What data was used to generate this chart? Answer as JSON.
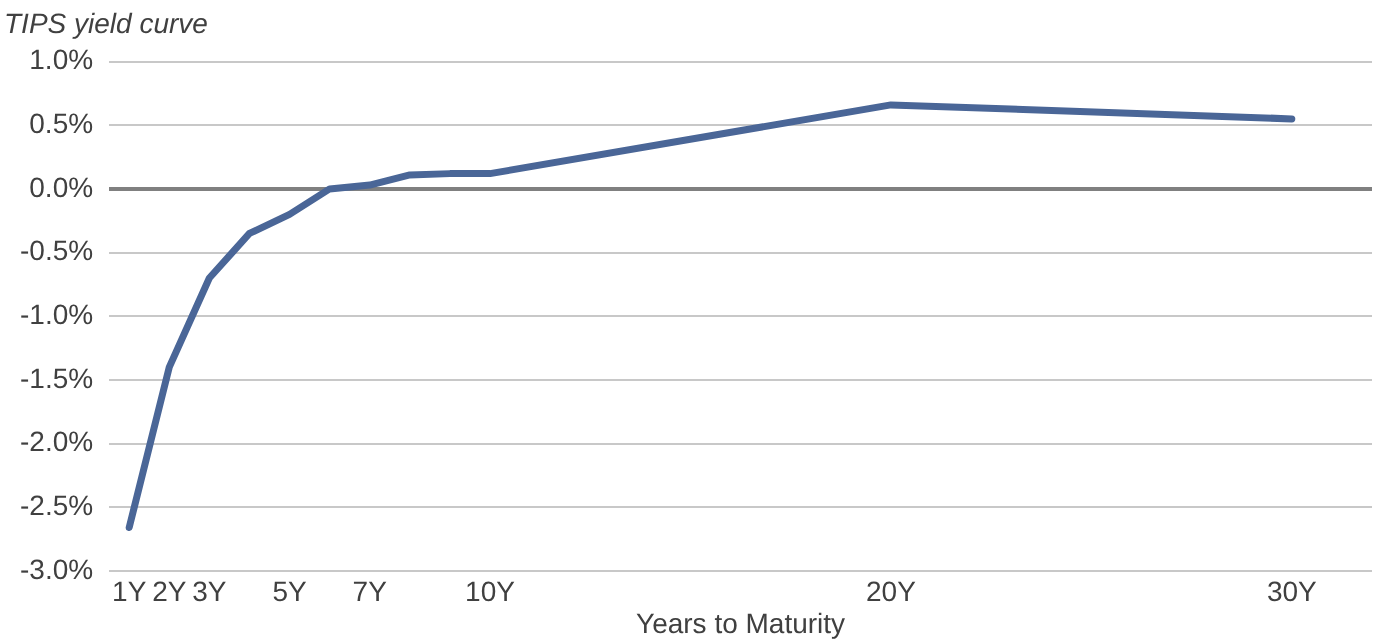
{
  "chart_data": {
    "type": "line",
    "title": "TIPS yield curve",
    "xlabel": "Years to Maturity",
    "x": [
      1,
      2,
      3,
      4,
      5,
      6,
      7,
      8,
      9,
      10,
      20,
      30
    ],
    "series": [
      {
        "color": "#4a6697",
        "values": [
          -2.66,
          -1.4,
          -0.7,
          -0.35,
          -0.2,
          0.0,
          0.03,
          0.11,
          0.12,
          0.12,
          0.66,
          0.55
        ]
      }
    ],
    "xlim": [
      0.5,
      32
    ],
    "xticks": [
      {
        "value": 1,
        "label": "1Y"
      },
      {
        "value": 2,
        "label": "2Y"
      },
      {
        "value": 3,
        "label": "3Y"
      },
      {
        "value": 5,
        "label": "5Y"
      },
      {
        "value": 7,
        "label": "7Y"
      },
      {
        "value": 10,
        "label": "10Y"
      },
      {
        "value": 20,
        "label": "20Y"
      },
      {
        "value": 30,
        "label": "30Y"
      }
    ],
    "ylim": [
      -3,
      1
    ],
    "yticks": [
      {
        "value": -3,
        "label": "-3.0%"
      },
      {
        "value": -2.5,
        "label": "-2.5%"
      },
      {
        "value": -2,
        "label": "-2.0%"
      },
      {
        "value": -1.5,
        "label": "-1.5%"
      },
      {
        "value": -1,
        "label": "-1.0%"
      },
      {
        "value": -0.5,
        "label": "-0.5%"
      },
      {
        "value": 0,
        "label": "0.0%"
      },
      {
        "value": 0.5,
        "label": "0.5%"
      },
      {
        "value": 1,
        "label": "1.0%"
      }
    ],
    "grid": "y",
    "legend": false,
    "marker": "none",
    "line_style": "solid"
  }
}
